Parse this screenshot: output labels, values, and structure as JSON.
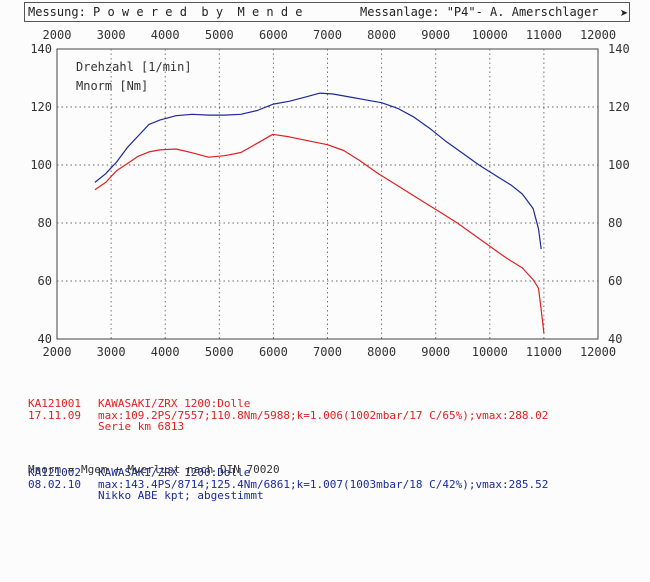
{
  "header": {
    "left": "Messung: P o w e r e d  b y  M e n d e",
    "right": "Messanlage: \"P4\"- A. Amerschlager"
  },
  "chart_data": {
    "type": "line",
    "x_ticks": [
      2000,
      3000,
      4000,
      5000,
      6000,
      7000,
      8000,
      9000,
      10000,
      11000,
      12000
    ],
    "y_ticks": [
      40,
      60,
      80,
      100,
      120,
      140
    ],
    "xlim": [
      2000,
      12000
    ],
    "ylim": [
      40,
      140
    ],
    "grid": true,
    "inset_labels": [
      "Drehzahl [1/min]",
      "Mnorm [Nm]"
    ],
    "series": [
      {
        "name": "KA121002",
        "color": "#1a2a9a",
        "points": [
          [
            2700,
            94
          ],
          [
            2900,
            97
          ],
          [
            3100,
            101
          ],
          [
            3300,
            106
          ],
          [
            3500,
            110
          ],
          [
            3700,
            114
          ],
          [
            3900,
            115.5
          ],
          [
            4200,
            117
          ],
          [
            4500,
            117.5
          ],
          [
            4800,
            117.2
          ],
          [
            5100,
            117.2
          ],
          [
            5400,
            117.5
          ],
          [
            5700,
            118.8
          ],
          [
            6000,
            121
          ],
          [
            6300,
            122
          ],
          [
            6600,
            123.5
          ],
          [
            6861,
            124.8
          ],
          [
            7100,
            124.5
          ],
          [
            7400,
            123.5
          ],
          [
            7700,
            122.5
          ],
          [
            8000,
            121.5
          ],
          [
            8300,
            119.5
          ],
          [
            8600,
            116.5
          ],
          [
            8900,
            112.5
          ],
          [
            9200,
            108
          ],
          [
            9500,
            104
          ],
          [
            9800,
            100
          ],
          [
            10100,
            96.5
          ],
          [
            10400,
            93
          ],
          [
            10600,
            90
          ],
          [
            10800,
            85
          ],
          [
            10900,
            78
          ],
          [
            10950,
            71
          ]
        ]
      },
      {
        "name": "KA121001",
        "color": "#e02020",
        "points": [
          [
            2700,
            91.5
          ],
          [
            2900,
            94
          ],
          [
            3100,
            98
          ],
          [
            3300,
            100.5
          ],
          [
            3500,
            103
          ],
          [
            3700,
            104.5
          ],
          [
            3900,
            105.2
          ],
          [
            4200,
            105.5
          ],
          [
            4500,
            104.2
          ],
          [
            4800,
            102.7
          ],
          [
            5100,
            103.2
          ],
          [
            5400,
            104.3
          ],
          [
            5700,
            107.5
          ],
          [
            5988,
            110.6
          ],
          [
            6300,
            109.7
          ],
          [
            6600,
            108.5
          ],
          [
            7000,
            107
          ],
          [
            7300,
            105
          ],
          [
            7600,
            101.5
          ],
          [
            7900,
            97.5
          ],
          [
            8200,
            94
          ],
          [
            8500,
            90.5
          ],
          [
            8800,
            87
          ],
          [
            9100,
            83.5
          ],
          [
            9400,
            80
          ],
          [
            9700,
            76
          ],
          [
            10000,
            72
          ],
          [
            10300,
            68
          ],
          [
            10600,
            64.5
          ],
          [
            10800,
            60.5
          ],
          [
            10900,
            57.5
          ],
          [
            10950,
            50
          ],
          [
            11000,
            42
          ]
        ]
      }
    ]
  },
  "legend": {
    "runs": [
      {
        "id": "KA121001",
        "date": "17.11.09",
        "lines": [
          "KAWASAKI/ZRX 1200:Dolle",
          "max:109.2PS/7557;110.8Nm/5988;k=1.006(1002mbar/17 C/65%);vmax:288.02",
          "Serie km 6813"
        ]
      },
      {
        "id": "KA121002",
        "date": "08.02.10",
        "lines": [
          "KAWASAKI/ZRX 1200:Dolle",
          "max:143.4PS/8714;125.4Nm/6861;k=1.007(1003mbar/18 C/42%);vmax:285.52",
          "Nikko ABE kpt; abgestimmt"
        ]
      }
    ],
    "footnote": "Mnorm = Mgem + Mverlust nach DIN 70020"
  }
}
